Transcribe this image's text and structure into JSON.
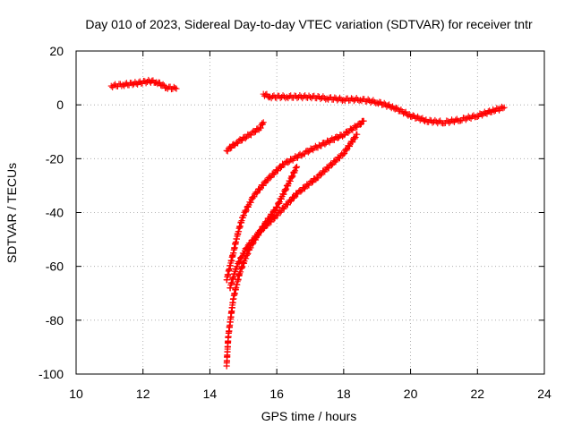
{
  "chart_data": {
    "type": "scatter",
    "title": "Day 010 of 2023, Sidereal Day-to-day VTEC variation (SDTVAR) for receiver tntr",
    "xlabel": "GPS time / hours",
    "ylabel": "SDTVAR / TECUs",
    "xlim": [
      10,
      24
    ],
    "ylim": [
      -100,
      20
    ],
    "xticks": [
      10,
      12,
      14,
      16,
      18,
      20,
      22,
      24
    ],
    "yticks": [
      -100,
      -80,
      -60,
      -40,
      -20,
      0,
      20
    ],
    "grid": true,
    "marker": "plus",
    "color": "#ff0000",
    "series": [
      {
        "points": [
          [
            11.05,
            7
          ],
          [
            11.4,
            7.5
          ],
          [
            11.8,
            8
          ],
          [
            12.2,
            8.8
          ],
          [
            12.4,
            8.5
          ],
          [
            12.7,
            6.5
          ],
          [
            13.0,
            6
          ]
        ]
      },
      {
        "points": [
          [
            14.5,
            -17
          ],
          [
            14.8,
            -14
          ],
          [
            15.2,
            -11
          ],
          [
            15.5,
            -8.5
          ],
          [
            15.6,
            -6.5
          ]
        ]
      },
      {
        "points": [
          [
            15.6,
            4
          ],
          [
            15.8,
            3
          ],
          [
            16.3,
            3
          ],
          [
            17,
            3
          ],
          [
            17.5,
            2.5
          ],
          [
            18,
            2
          ],
          [
            18.5,
            2
          ],
          [
            19,
            1
          ],
          [
            19.5,
            -1
          ],
          [
            20,
            -4
          ],
          [
            20.5,
            -6
          ],
          [
            21,
            -6.5
          ],
          [
            21.5,
            -5.5
          ],
          [
            22,
            -4
          ],
          [
            22.5,
            -2
          ],
          [
            22.8,
            -1
          ]
        ]
      },
      {
        "points": [
          [
            14.5,
            -65
          ],
          [
            14.7,
            -55
          ],
          [
            14.85,
            -47
          ],
          [
            15.0,
            -41
          ],
          [
            15.3,
            -34
          ],
          [
            15.7,
            -28
          ],
          [
            16.2,
            -22
          ],
          [
            16.8,
            -18
          ],
          [
            17.3,
            -15
          ],
          [
            18.0,
            -11
          ],
          [
            18.5,
            -7
          ],
          [
            18.6,
            -6
          ]
        ]
      },
      {
        "points": [
          [
            14.5,
            -97
          ],
          [
            14.55,
            -86
          ],
          [
            14.7,
            -72
          ],
          [
            14.9,
            -62
          ],
          [
            15.2,
            -53
          ],
          [
            15.6,
            -45
          ],
          [
            16.0,
            -38
          ],
          [
            16.6,
            -23
          ]
        ]
      },
      {
        "points": [
          [
            14.6,
            -68
          ],
          [
            14.8,
            -60
          ],
          [
            15.1,
            -53
          ],
          [
            15.5,
            -47
          ],
          [
            16.0,
            -41
          ],
          [
            16.6,
            -33
          ],
          [
            17.2,
            -27
          ],
          [
            18.0,
            -18
          ],
          [
            18.4,
            -11
          ]
        ]
      }
    ]
  }
}
